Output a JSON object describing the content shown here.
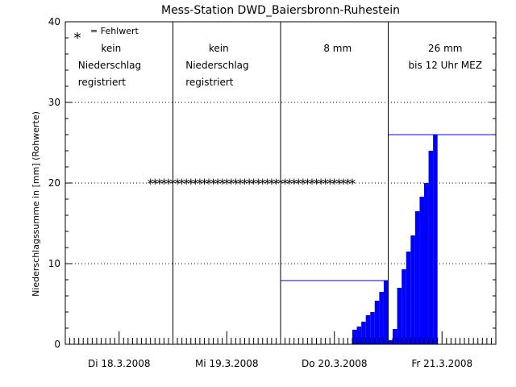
{
  "chart_data": {
    "type": "bar",
    "title": "Mess-Station DWD_Baiersbronn-Ruhestein",
    "ylabel": "Niederschlagssumme in [mm] (Rohwerte)",
    "xlabel": "",
    "ylim": [
      0,
      40
    ],
    "yticks": [
      0,
      10,
      20,
      30,
      40
    ],
    "xlim_hours": [
      0,
      96
    ],
    "grid": "dotted horizontal at 10, 20, 30",
    "days": [
      {
        "label": "Di 18.3.2008",
        "annotation": [
          "kein",
          "Niederschlag",
          "registriert"
        ]
      },
      {
        "label": "Mi 19.3.2008",
        "annotation": [
          "kein",
          "Niederschlag",
          "registriert"
        ]
      },
      {
        "label": "Do 20.3.2008",
        "annotation": [
          "8 mm"
        ]
      },
      {
        "label": "Fr 21.3.2008",
        "annotation": [
          "26 mm",
          "bis 12 Uhr MEZ"
        ]
      }
    ],
    "legend": {
      "symbol": "*",
      "text": "= Fehlwert"
    },
    "series": [
      {
        "name": "Niederschlagssumme",
        "color": "#0000ff",
        "bars": [
          {
            "hour": 64,
            "value": 1.8
          },
          {
            "hour": 65,
            "value": 2.2
          },
          {
            "hour": 66,
            "value": 2.8
          },
          {
            "hour": 67,
            "value": 3.6
          },
          {
            "hour": 68,
            "value": 4.0
          },
          {
            "hour": 69,
            "value": 5.4
          },
          {
            "hour": 70,
            "value": 6.5
          },
          {
            "hour": 71,
            "value": 7.9
          },
          {
            "hour": 72,
            "value": 0.5
          },
          {
            "hour": 73,
            "value": 1.9
          },
          {
            "hour": 74,
            "value": 7.0
          },
          {
            "hour": 75,
            "value": 9.3
          },
          {
            "hour": 76,
            "value": 11.5
          },
          {
            "hour": 77,
            "value": 13.5
          },
          {
            "hour": 78,
            "value": 16.5
          },
          {
            "hour": 79,
            "value": 18.3
          },
          {
            "hour": 80,
            "value": 20.0
          },
          {
            "hour": 81,
            "value": 24.0
          },
          {
            "hour": 82,
            "value": 26.0
          }
        ]
      }
    ],
    "daily_totals": [
      {
        "start_hour": 48,
        "end_hour": 72,
        "value": 7.9
      },
      {
        "start_hour": 72,
        "end_hour": 96,
        "value": 26.0
      }
    ],
    "missing_values": {
      "symbol": "*",
      "start_hour": 19,
      "end_hour": 64,
      "value": 20
    }
  }
}
